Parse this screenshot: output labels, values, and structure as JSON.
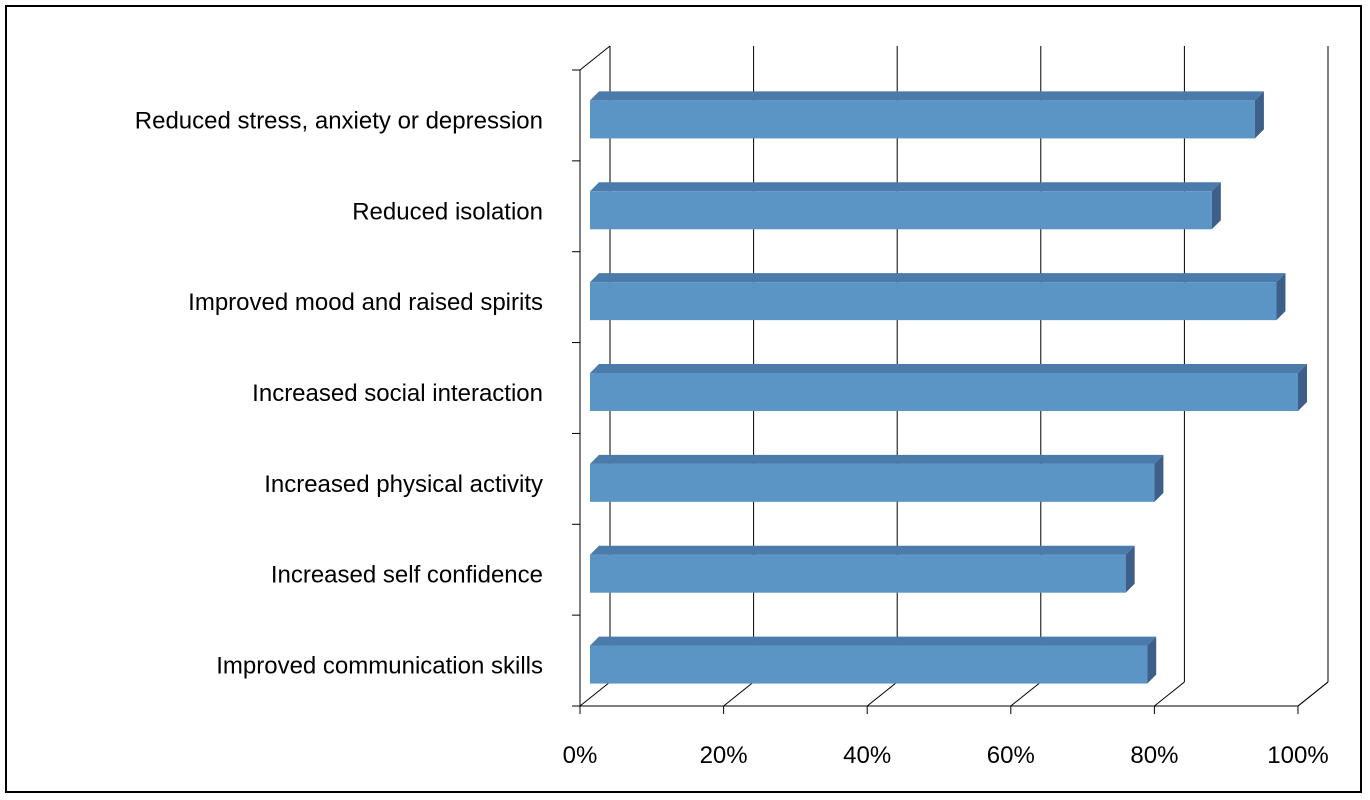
{
  "chart_data": {
    "type": "bar",
    "orientation": "horizontal",
    "style": "3d",
    "categories": [
      "Reduced stress, anxiety or depression",
      "Reduced isolation",
      "Improved mood and raised spirits",
      "Increased social interaction",
      "Increased physical activity",
      "Increased self confidence",
      "Improved communication skills"
    ],
    "values": [
      94,
      88,
      97,
      100,
      80,
      76,
      79
    ],
    "xlim": [
      0,
      100
    ],
    "xticks": [
      "0%",
      "20%",
      "40%",
      "60%",
      "80%",
      "100%"
    ],
    "grid": "vertical",
    "legend": "none",
    "colors": {
      "bar_front": "#5b95c5",
      "bar_top": "#4a7bab",
      "bar_side": "#3e5f8a",
      "axis": "#000000",
      "frame": "#000000"
    }
  }
}
